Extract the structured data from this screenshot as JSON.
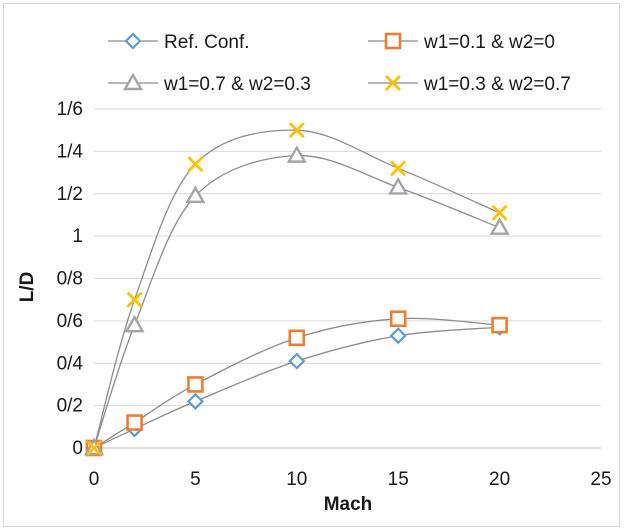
{
  "chart_data": {
    "type": "scatter",
    "xlabel": "Mach",
    "ylabel": "L/D",
    "xlim": [
      0,
      25
    ],
    "ylim": [
      0,
      1.6
    ],
    "x_ticks": [
      0,
      5,
      10,
      15,
      20,
      25
    ],
    "x_tick_labels": [
      "0",
      "5",
      "10",
      "15",
      "20",
      "25"
    ],
    "y_ticks": [
      0,
      0.2,
      0.4,
      0.6,
      0.8,
      1.0,
      1.2,
      1.4,
      1.6
    ],
    "y_tick_labels": [
      "0",
      "0/2",
      "0/4",
      "0/6",
      "0/8",
      "1",
      "1/2",
      "1/4",
      "1/6"
    ],
    "grid": "horizontal",
    "legend_position": "top",
    "series": [
      {
        "name": "Ref. Conf.",
        "marker": "diamond",
        "color": "#5b9bd5",
        "x": [
          0,
          2,
          5,
          10,
          15,
          20
        ],
        "y": [
          0,
          0.09,
          0.22,
          0.41,
          0.53,
          0.57
        ]
      },
      {
        "name": "w1=0.1 & w2=0",
        "marker": "square",
        "color": "#ed7d31",
        "x": [
          0,
          2,
          5,
          10,
          15,
          20
        ],
        "y": [
          0,
          0.12,
          0.3,
          0.52,
          0.61,
          0.58
        ]
      },
      {
        "name": "w1=0.7 & w2=0.3",
        "marker": "triangle",
        "color": "#a5a5a5",
        "x": [
          0,
          2,
          5,
          10,
          15,
          20
        ],
        "y": [
          0,
          0.58,
          1.19,
          1.38,
          1.23,
          1.04
        ]
      },
      {
        "name": "w1=0.3 & w2=0.7",
        "marker": "x",
        "color": "#ffc000",
        "x": [
          0,
          2,
          5,
          10,
          15,
          20
        ],
        "y": [
          0,
          0.7,
          1.34,
          1.5,
          1.32,
          1.11
        ]
      }
    ],
    "line_color": "#8c8c8c"
  }
}
